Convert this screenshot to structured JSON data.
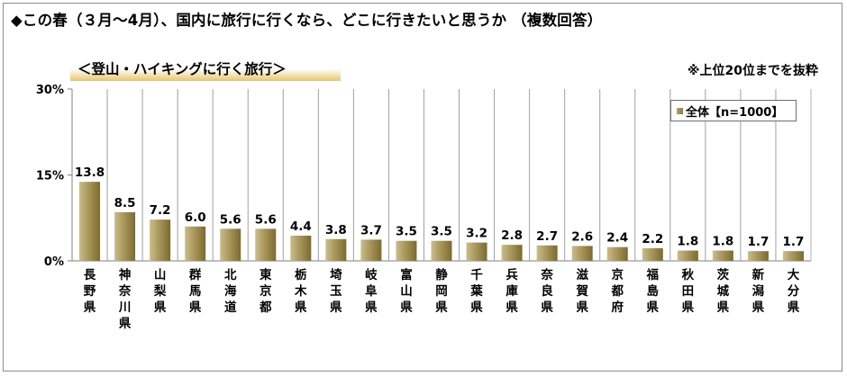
{
  "header": {
    "title": "◆この春（３月～4月）、国内に旅行に行くなら、どこに行きたいと思うか （複数回答）",
    "subtitle": "＜登山・ハイキングに行く旅行＞",
    "note": "※上位20位までを抜粋"
  },
  "legend": {
    "label": "全体【n=1000】"
  },
  "colors": {
    "bar_light": "#cbbd8c",
    "bar_mid": "#a8965a",
    "bar_dark": "#7c6a30",
    "grid": "#9a9a9a"
  },
  "chart_data": {
    "type": "bar",
    "title": "＜登山・ハイキングに行く旅行＞",
    "ylim": [
      0,
      30
    ],
    "yticks": [
      "0%",
      "15%",
      "30%"
    ],
    "ytick_values": [
      0,
      15,
      30
    ],
    "grid": "vertical separators between categories",
    "legend_position": "top-right",
    "categories": [
      "長野県",
      "神奈川県",
      "山梨県",
      "群馬県",
      "北海道",
      "東京都",
      "栃木県",
      "埼玉県",
      "岐阜県",
      "富山県",
      "静岡県",
      "千葉県",
      "兵庫県",
      "奈良県",
      "滋賀県",
      "京都府",
      "福島県",
      "秋田県",
      "茨城県",
      "新潟県",
      "大分県"
    ],
    "series": [
      {
        "name": "全体【n=1000】",
        "values": [
          13.8,
          8.5,
          7.2,
          6.0,
          5.6,
          5.6,
          4.4,
          3.8,
          3.7,
          3.5,
          3.5,
          3.2,
          2.8,
          2.7,
          2.6,
          2.4,
          2.2,
          1.8,
          1.8,
          1.7,
          1.7
        ],
        "labels": [
          "13.8",
          "8.5",
          "7.2",
          "6.0",
          "5.6",
          "5.6",
          "4.4",
          "3.8",
          "3.7",
          "3.5",
          "3.5",
          "3.2",
          "2.8",
          "2.7",
          "2.6",
          "2.4",
          "2.2",
          "1.8",
          "1.8",
          "1.7",
          "1.7"
        ]
      }
    ]
  }
}
